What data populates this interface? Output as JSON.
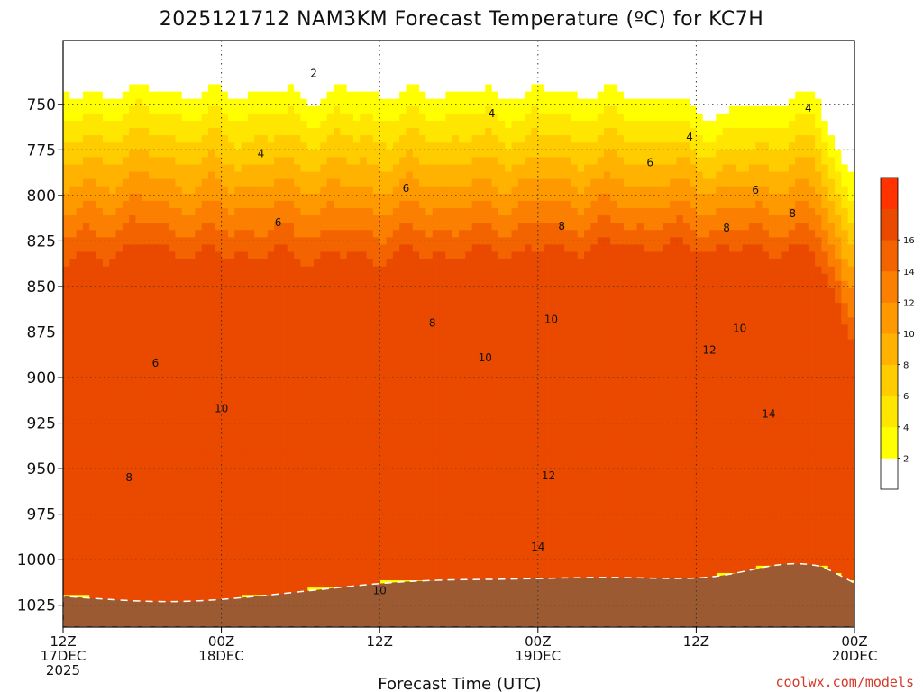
{
  "chart_data": {
    "type": "heatmap",
    "title": "2025121712 NAM3KM Forecast Temperature (ºC) for KC7H",
    "xlabel": "Forecast Time (UTC)",
    "ylabel": "",
    "credit": "coolwx.com/models",
    "x_ticks": [
      {
        "hour": 0,
        "line1": "12Z",
        "line2": "17DEC",
        "line3": "2025"
      },
      {
        "hour": 12,
        "line1": "00Z",
        "line2": "18DEC",
        "line3": ""
      },
      {
        "hour": 24,
        "line1": "12Z",
        "line2": "",
        "line3": ""
      },
      {
        "hour": 36,
        "line1": "00Z",
        "line2": "19DEC",
        "line3": ""
      },
      {
        "hour": 48,
        "line1": "12Z",
        "line2": "",
        "line3": ""
      },
      {
        "hour": 60,
        "line1": "00Z",
        "line2": "20DEC",
        "line3": ""
      }
    ],
    "xlim": [
      0,
      60
    ],
    "y_ticks": [
      750,
      775,
      800,
      825,
      850,
      875,
      900,
      925,
      950,
      975,
      1000,
      1025
    ],
    "ylim": [
      715,
      1037
    ],
    "colorbar": {
      "levels": [
        0,
        2,
        4,
        6,
        8,
        10,
        12,
        14,
        16,
        18
      ],
      "labels": [
        "2",
        "4",
        "6",
        "8",
        "10",
        "12",
        "14",
        "16"
      ],
      "colors": [
        "#ffffff",
        "#ffff00",
        "#ffe600",
        "#ffcc00",
        "#ffb300",
        "#ff9900",
        "#fb7f00",
        "#f36400",
        "#ea4900",
        "#ff3300"
      ]
    },
    "contour_labels": [
      {
        "text": "2",
        "hour": 19.0,
        "p": 733
      },
      {
        "text": "4",
        "hour": 15.0,
        "p": 777
      },
      {
        "text": "4",
        "hour": 32.5,
        "p": 755
      },
      {
        "text": "4",
        "hour": 47.5,
        "p": 768
      },
      {
        "text": "4",
        "hour": 56.5,
        "p": 752
      },
      {
        "text": "6",
        "hour": 16.3,
        "p": 815
      },
      {
        "text": "6",
        "hour": 26.0,
        "p": 796
      },
      {
        "text": "6",
        "hour": 44.5,
        "p": 782
      },
      {
        "text": "6",
        "hour": 52.5,
        "p": 797
      },
      {
        "text": "6",
        "hour": 7.0,
        "p": 892
      },
      {
        "text": "8",
        "hour": 37.8,
        "p": 817
      },
      {
        "text": "8",
        "hour": 50.3,
        "p": 818
      },
      {
        "text": "8",
        "hour": 55.3,
        "p": 810
      },
      {
        "text": "8",
        "hour": 28.0,
        "p": 870
      },
      {
        "text": "8",
        "hour": 5.0,
        "p": 955
      },
      {
        "text": "10",
        "hour": 37.0,
        "p": 868
      },
      {
        "text": "10",
        "hour": 32.0,
        "p": 889
      },
      {
        "text": "10",
        "hour": 51.3,
        "p": 873
      },
      {
        "text": "10",
        "hour": 12.0,
        "p": 917
      },
      {
        "text": "10",
        "hour": 24.0,
        "p": 1017
      },
      {
        "text": "12",
        "hour": 49.0,
        "p": 885
      },
      {
        "text": "12",
        "hour": 36.8,
        "p": 954
      },
      {
        "text": "14",
        "hour": 53.5,
        "p": 920
      },
      {
        "text": "14",
        "hour": 36.0,
        "p": 993
      }
    ]
  }
}
